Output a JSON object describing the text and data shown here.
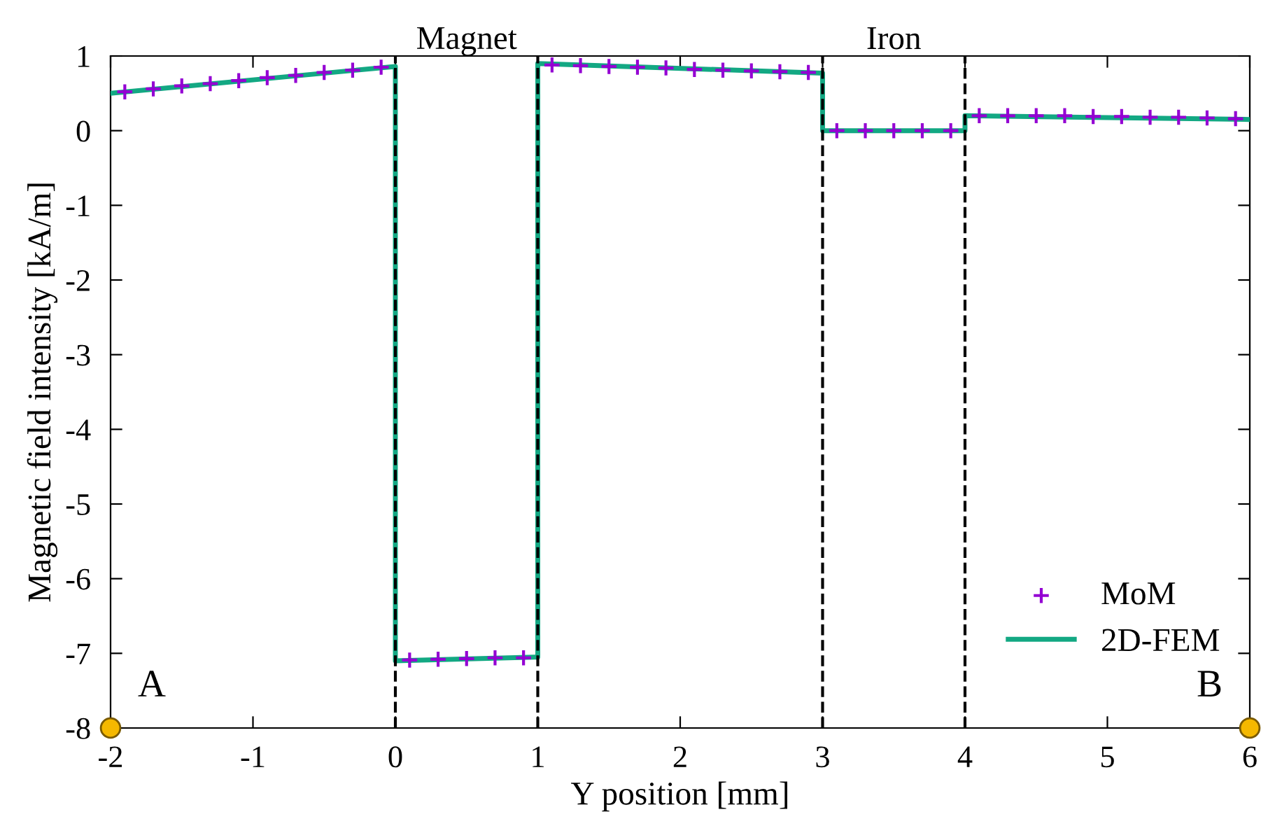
{
  "chart_data": {
    "type": "line",
    "xlabel": "Y position [mm]",
    "ylabel": "Magnetic field intensity [kA/m]",
    "xlim": [
      -2,
      6
    ],
    "ylim": [
      -8,
      1
    ],
    "xticks": [
      -2,
      -1,
      0,
      1,
      2,
      3,
      4,
      5,
      6
    ],
    "yticks": [
      -8,
      -7,
      -6,
      -5,
      -4,
      -3,
      -2,
      -1,
      0,
      1
    ],
    "grid": false,
    "legend": "bottom right",
    "series": [
      {
        "name": "MoM",
        "type": "scatter",
        "marker": "cross",
        "color": "#9400d3",
        "x": [
          -1.9,
          -1.7,
          -1.5,
          -1.3,
          -1.1,
          -0.9,
          -0.7,
          -0.5,
          -0.3,
          -0.1,
          0.1,
          0.3,
          0.5,
          0.7,
          0.9,
          1.1,
          1.3,
          1.5,
          1.7,
          1.9,
          2.1,
          2.3,
          2.5,
          2.7,
          2.9,
          3.1,
          3.3,
          3.5,
          3.7,
          3.9,
          4.1,
          4.3,
          4.5,
          4.7,
          4.9,
          5.1,
          5.3,
          5.5,
          5.7,
          5.9
        ],
        "values": [
          0.52,
          0.56,
          0.6,
          0.63,
          0.67,
          0.71,
          0.74,
          0.78,
          0.81,
          0.85,
          -7.09,
          -7.08,
          -7.07,
          -7.06,
          -7.06,
          0.88,
          0.87,
          0.86,
          0.85,
          0.84,
          0.82,
          0.81,
          0.8,
          0.79,
          0.78,
          0.0,
          0.0,
          0.0,
          0.0,
          0.0,
          0.2,
          0.2,
          0.2,
          0.2,
          0.19,
          0.19,
          0.18,
          0.18,
          0.17,
          0.16
        ]
      },
      {
        "name": "2D-FEM",
        "line_style": "solid",
        "color": "#13a883",
        "x": [
          -2,
          0,
          0,
          1,
          1,
          3,
          3,
          4,
          4,
          6
        ],
        "values": [
          0.5,
          0.86,
          -7.1,
          -7.05,
          0.9,
          0.77,
          0.0,
          0.0,
          0.2,
          0.15
        ]
      }
    ],
    "ref_lines": [
      {
        "axis": "x",
        "value": 0,
        "line_style": "dashed",
        "color": "#000000"
      },
      {
        "axis": "x",
        "value": 1,
        "line_style": "dashed",
        "color": "#000000"
      },
      {
        "axis": "x",
        "value": 3,
        "line_style": "dashed",
        "color": "#000000"
      },
      {
        "axis": "x",
        "value": 4,
        "line_style": "dashed",
        "color": "#000000"
      }
    ],
    "annotations": [
      "Magnet",
      "Iron",
      {
        "text": "A",
        "x": -2,
        "y": -8
      },
      {
        "text": "B",
        "x": 6,
        "y": -8
      }
    ]
  }
}
